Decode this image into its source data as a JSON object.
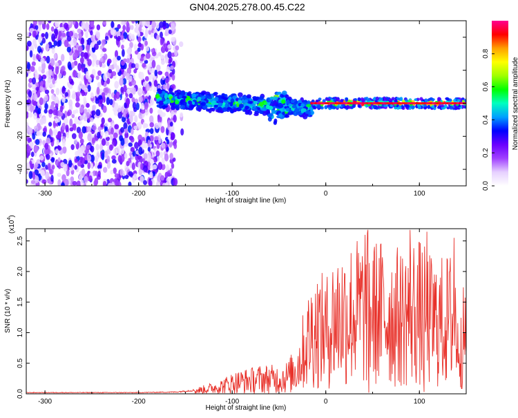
{
  "title": "GN04.2025.278.00.45.C22",
  "colors": {
    "spectrogram_noise": "#8a2be2",
    "snr_line": "#e8312a",
    "axis": "#000000"
  },
  "chart_data": [
    {
      "type": "heatmap",
      "name": "spectrogram",
      "xlabel": "Height of straight line (km)",
      "ylabel": "Frequency (Hz)",
      "xlim": [
        -320,
        150
      ],
      "ylim": [
        -50,
        50
      ],
      "xticks": [
        -300,
        -200,
        -100,
        0,
        100
      ],
      "xtick_labels": [
        "-300",
        "-200",
        "-100",
        "0",
        "100"
      ],
      "yticks": [
        -40,
        -20,
        0,
        20,
        40
      ],
      "ytick_labels": [
        "-40",
        "-20",
        "0",
        "20",
        "40"
      ],
      "colorbar": {
        "label": "Normalized spectral amplitude",
        "range": [
          0,
          1
        ],
        "ticks": [
          0.0,
          0.2,
          0.4,
          0.6,
          0.8
        ],
        "tick_labels": [
          "0.0",
          "0.2",
          "0.4",
          "0.6",
          "0.8"
        ],
        "colormap": [
          "#ffffff",
          "#e6d0ff",
          "#a040ff",
          "#6a00ff",
          "#0000ff",
          "#00a0ff",
          "#00ffc0",
          "#00ff00",
          "#a0ff00",
          "#ffff00",
          "#ffa000",
          "#ff0000",
          "#ff0090"
        ]
      },
      "regions": [
        {
          "desc": "broadband noise",
          "x_range": [
            -320,
            -160
          ],
          "y_range": [
            -50,
            50
          ],
          "amplitude": [
            0.05,
            0.35
          ]
        },
        {
          "desc": "signal band",
          "x_range": [
            -180,
            -15
          ],
          "center_freq": [
            3,
            -3
          ],
          "half_width_hz": 6,
          "amplitude": [
            0.3,
            0.55
          ]
        },
        {
          "desc": "tone at 0 Hz",
          "x_range": [
            -15,
            150
          ],
          "center_freq": 0,
          "half_width_hz": 3,
          "amplitude": [
            0.5,
            1.0
          ]
        }
      ]
    },
    {
      "type": "line",
      "name": "snr",
      "xlabel": "Height of straight line (km)",
      "ylabel": "SNR (10 * v/v)",
      "y_multiplier": "(x10",
      "y_multiplier_exp": "4",
      "y_multiplier_close": ")",
      "xlim": [
        -320,
        150
      ],
      "ylim": [
        0,
        2.7
      ],
      "xticks": [
        -300,
        -200,
        -100,
        0,
        100
      ],
      "xtick_labels": [
        "-300",
        "-200",
        "-100",
        "0",
        "100"
      ],
      "yticks": [
        0.0,
        0.5,
        1.0,
        1.5,
        2.0,
        2.5
      ],
      "ytick_labels": [
        "0.0",
        "0.5",
        "1.0",
        "1.5",
        "2.0",
        "2.5"
      ],
      "series": [
        {
          "name": "SNR",
          "anchor_x": [
            -320,
            -200,
            -160,
            -140,
            -120,
            -110,
            -100,
            -90,
            -80,
            -70,
            -60,
            -50,
            -40,
            -30,
            -25,
            -20,
            -15,
            -10,
            -5,
            0,
            10,
            20,
            30,
            40,
            45,
            50,
            60,
            70,
            80,
            90,
            100,
            110,
            120,
            130,
            135,
            140,
            145,
            150
          ],
          "anchor_y": [
            0.02,
            0.02,
            0.03,
            0.06,
            0.12,
            0.16,
            0.22,
            0.25,
            0.27,
            0.3,
            0.3,
            0.3,
            0.35,
            0.55,
            0.8,
            1.0,
            1.2,
            1.3,
            1.25,
            1.2,
            1.5,
            1.55,
            1.6,
            1.65,
            1.7,
            1.6,
            1.6,
            1.55,
            1.5,
            1.65,
            1.6,
            1.45,
            1.4,
            1.45,
            1.5,
            1.35,
            1.1,
            1.1
          ],
          "peaks": [
            {
              "x": 42,
              "y": 2.6
            },
            {
              "x": 46,
              "y": 0.02
            },
            {
              "x": 90,
              "y": 2.68
            },
            {
              "x": 105,
              "y": 0.03
            },
            {
              "x": 108,
              "y": 2.65
            },
            {
              "x": 137,
              "y": 2.55
            },
            {
              "x": 142,
              "y": 0.5
            }
          ]
        }
      ]
    }
  ]
}
